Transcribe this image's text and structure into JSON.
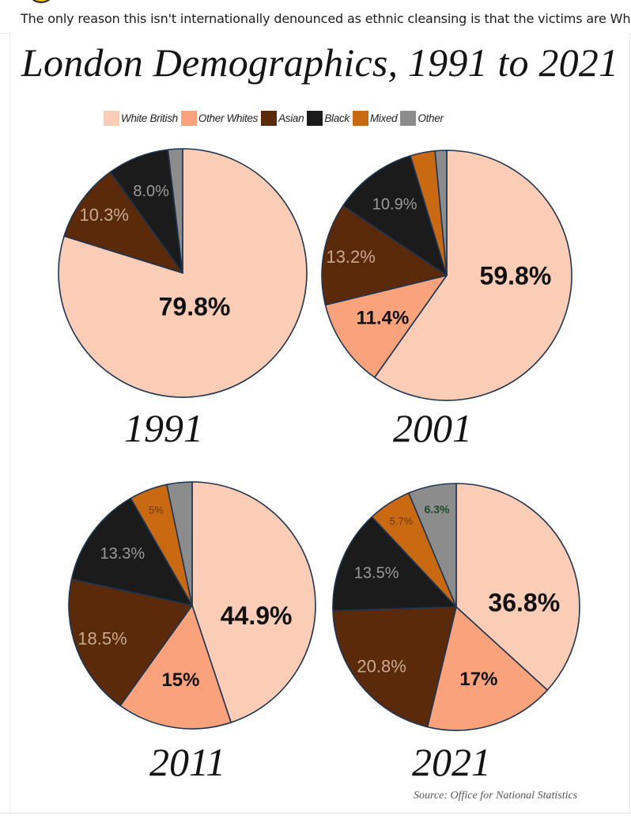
{
  "post": {
    "text": "The only reason this isn't internationally denounced as ethnic cleansing is that the victims are White."
  },
  "colors": {
    "white_british": "#fbcdb7",
    "other_whites": "#f9a27c",
    "asian": "#5a2a0a",
    "black": "#1b1b1b",
    "mixed": "#c96a12",
    "other": "#8c8c8c",
    "outline": "#1f3552"
  },
  "chart_data": {
    "type": "pie",
    "title": "London Demographics, 1991 to 2021",
    "legend_position": "top",
    "legend": [
      "White British",
      "Other Whites",
      "Asian",
      "Black",
      "Mixed",
      "Other"
    ],
    "source": "Source: Office for National Statistics",
    "charts": [
      {
        "year": "1991",
        "slices": [
          {
            "category": "White British",
            "value": 79.8,
            "label": "79.8%"
          },
          {
            "category": "Asian",
            "value": 10.3,
            "label": "10.3%"
          },
          {
            "category": "Black",
            "value": 8.0,
            "label": "8.0%"
          },
          {
            "category": "Other",
            "value": 1.9,
            "label": ""
          }
        ]
      },
      {
        "year": "2001",
        "slices": [
          {
            "category": "White British",
            "value": 59.8,
            "label": "59.8%"
          },
          {
            "category": "Other Whites",
            "value": 11.4,
            "label": "11.4%"
          },
          {
            "category": "Asian",
            "value": 13.2,
            "label": "13.2%"
          },
          {
            "category": "Black",
            "value": 10.9,
            "label": "10.9%"
          },
          {
            "category": "Mixed",
            "value": 3.2,
            "label": ""
          },
          {
            "category": "Other",
            "value": 1.5,
            "label": ""
          }
        ]
      },
      {
        "year": "2011",
        "slices": [
          {
            "category": "White British",
            "value": 44.9,
            "label": "44.9%"
          },
          {
            "category": "Other Whites",
            "value": 15,
            "label": "15%"
          },
          {
            "category": "Asian",
            "value": 18.5,
            "label": "18.5%"
          },
          {
            "category": "Black",
            "value": 13.3,
            "label": "13.3%"
          },
          {
            "category": "Mixed",
            "value": 5,
            "label": "5%"
          },
          {
            "category": "Other",
            "value": 3.3,
            "label": ""
          }
        ]
      },
      {
        "year": "2021",
        "slices": [
          {
            "category": "White British",
            "value": 36.8,
            "label": "36.8%"
          },
          {
            "category": "Other Whites",
            "value": 17,
            "label": "17%"
          },
          {
            "category": "Asian",
            "value": 20.8,
            "label": "20.8%"
          },
          {
            "category": "Black",
            "value": 13.5,
            "label": "13.5%"
          },
          {
            "category": "Mixed",
            "value": 5.7,
            "label": "5.7%"
          },
          {
            "category": "Other",
            "value": 6.3,
            "label": "6.3%"
          }
        ]
      }
    ]
  }
}
